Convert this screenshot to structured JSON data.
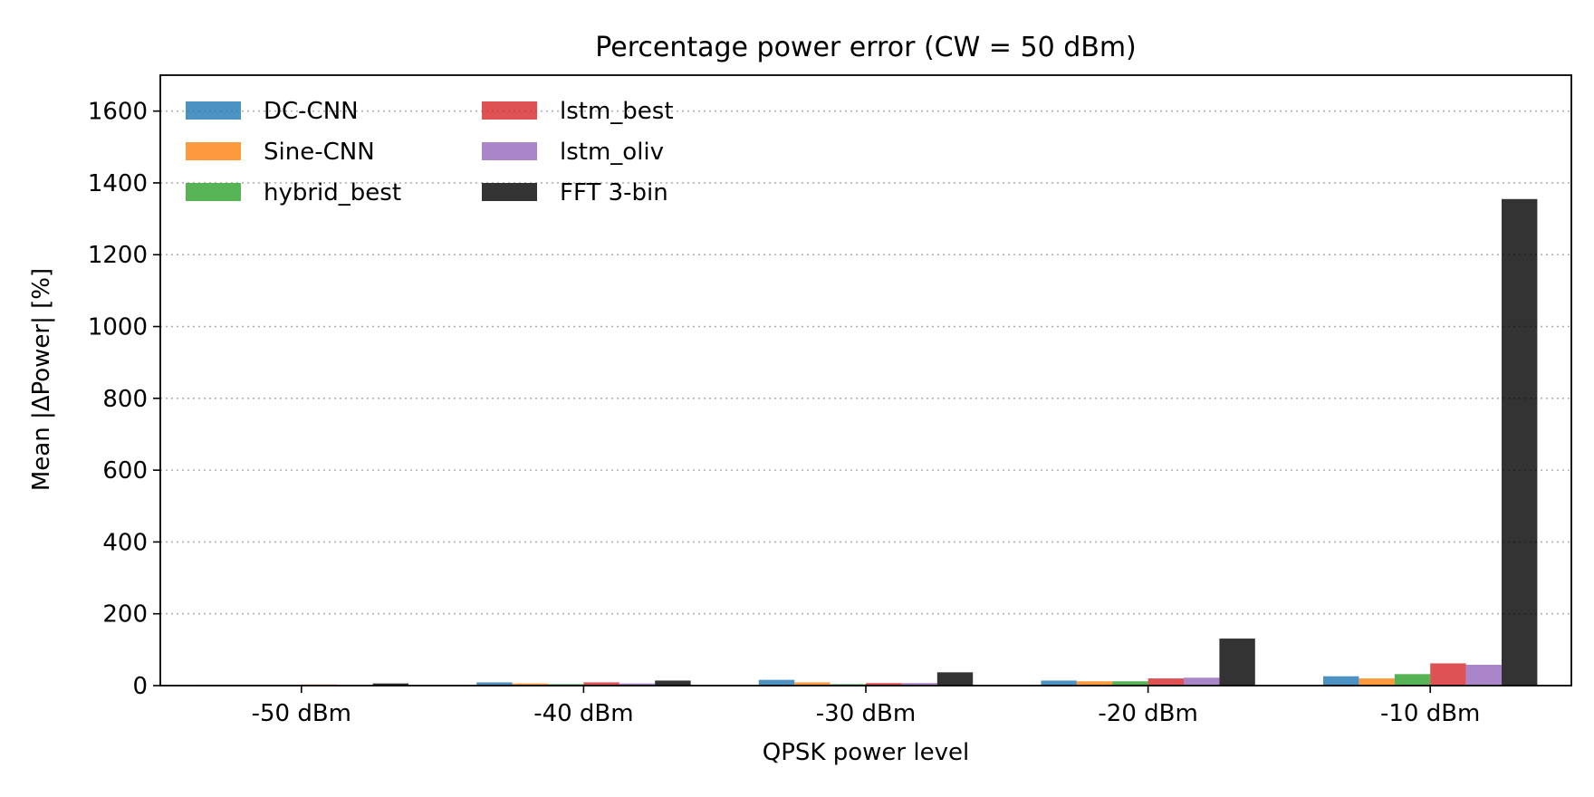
{
  "chart_data": {
    "type": "bar",
    "title": "Percentage power error  (CW = 50 dBm)",
    "xlabel": "QPSK power level",
    "ylabel": "Mean |ΔPower|  [%]",
    "categories": [
      "-50 dBm",
      "-40 dBm",
      "-30 dBm",
      "-20 dBm",
      "-10 dBm"
    ],
    "ylim": [
      0,
      1700
    ],
    "yticks": [
      0,
      200,
      400,
      600,
      800,
      1000,
      1200,
      1400,
      1600
    ],
    "grid": "y, dotted",
    "legend_placement": "top-left, 2 columns",
    "series": [
      {
        "name": "DC-CNN",
        "color": "#1f77b4",
        "values": [
          2,
          9,
          16,
          14,
          26
        ]
      },
      {
        "name": "Sine-CNN",
        "color": "#ff7f0e",
        "values": [
          2,
          6,
          9,
          12,
          20
        ]
      },
      {
        "name": "hybrid_best",
        "color": "#2ca02c",
        "values": [
          2,
          4,
          4,
          12,
          32
        ]
      },
      {
        "name": "lstm_best",
        "color": "#d62728",
        "values": [
          3,
          9,
          7,
          20,
          62
        ]
      },
      {
        "name": "lstm_oliv",
        "color": "#9467bd",
        "values": [
          2,
          6,
          7,
          22,
          58
        ]
      },
      {
        "name": "FFT 3-bin",
        "color": "#000000",
        "values": [
          6,
          14,
          37,
          131,
          1355
        ]
      }
    ]
  }
}
